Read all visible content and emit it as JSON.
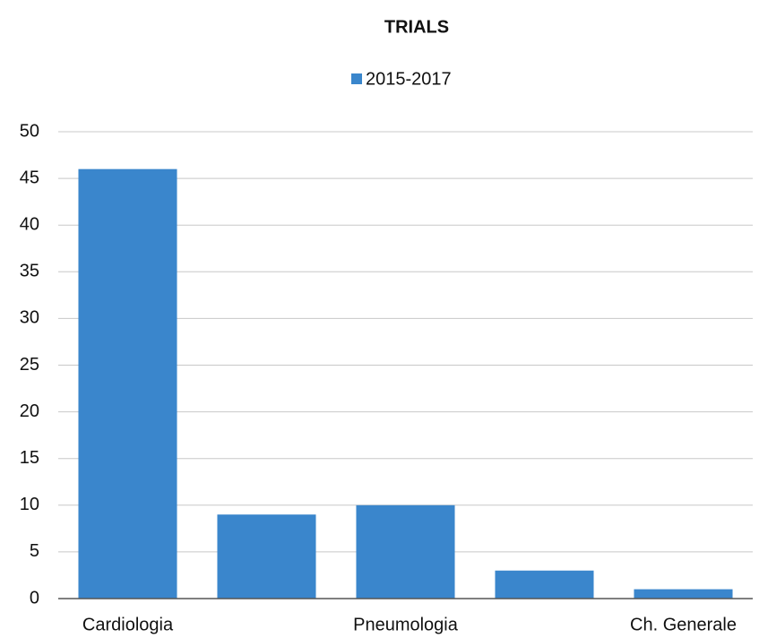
{
  "chart_data": {
    "type": "bar",
    "title": "TRIALS",
    "categories": [
      "Cardiologia",
      null,
      "Pneumologia",
      null,
      "Ch. Generale"
    ],
    "series": [
      {
        "name": "2015-2017",
        "color": "#3a86cc",
        "values": [
          46,
          9,
          10,
          3,
          1
        ]
      }
    ],
    "ylim": [
      0,
      50
    ],
    "yticks": [
      0,
      5,
      10,
      15,
      20,
      25,
      30,
      35,
      40,
      45,
      50
    ],
    "grid": true,
    "legend": "top"
  }
}
